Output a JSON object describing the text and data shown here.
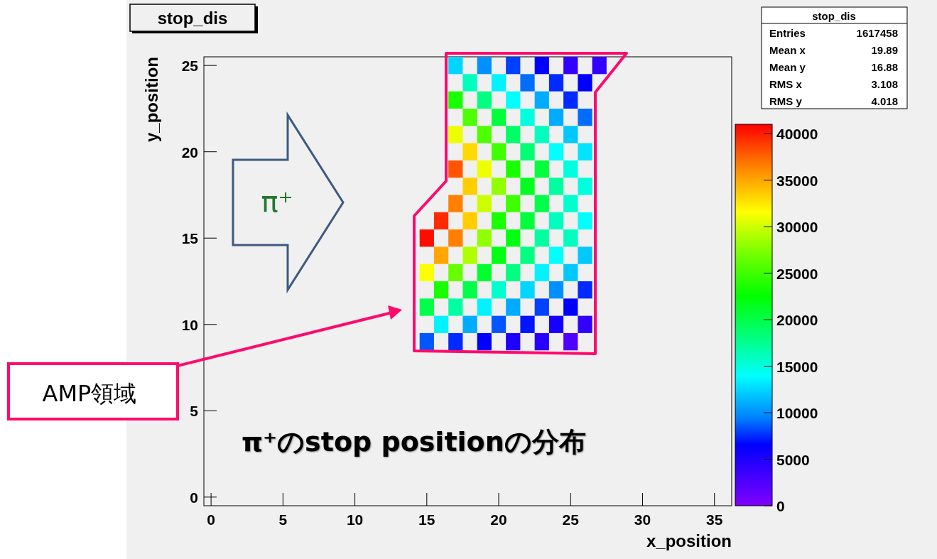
{
  "chart_data": {
    "type": "heatmap",
    "title": "stop_dis",
    "xlabel": "x_position",
    "ylabel": "y_position",
    "x": [
      15,
      16,
      17,
      18,
      19,
      20,
      21,
      22,
      23,
      24,
      25,
      26,
      27
    ],
    "y": [
      25,
      24,
      23,
      22,
      21,
      20,
      19,
      18,
      17,
      16,
      15,
      14,
      13,
      12,
      11,
      10,
      9
    ],
    "cells": [
      [
        null,
        null,
        12500,
        null,
        10000,
        null,
        8000,
        null,
        6500,
        null,
        4000,
        null,
        4000
      ],
      [
        null,
        null,
        null,
        16000,
        null,
        13500,
        null,
        9000,
        null,
        7500,
        null,
        6500,
        null
      ],
      [
        null,
        null,
        23500,
        null,
        18000,
        null,
        14000,
        null,
        11000,
        null,
        7500,
        null,
        null
      ],
      [
        null,
        null,
        null,
        25500,
        null,
        20500,
        null,
        15000,
        null,
        11000,
        null,
        9000,
        null
      ],
      [
        null,
        null,
        31000,
        null,
        25500,
        null,
        19000,
        null,
        16000,
        null,
        12000,
        null,
        null
      ],
      [
        null,
        null,
        null,
        33000,
        null,
        25000,
        null,
        18500,
        null,
        14000,
        null,
        13000,
        null
      ],
      [
        null,
        null,
        38000,
        null,
        31000,
        null,
        23500,
        null,
        20500,
        null,
        15000,
        null,
        null
      ],
      [
        null,
        null,
        null,
        33500,
        null,
        28000,
        null,
        21500,
        null,
        17000,
        null,
        15000,
        null
      ],
      [
        null,
        null,
        36500,
        null,
        30000,
        null,
        25000,
        null,
        20000,
        null,
        15500,
        null,
        null
      ],
      [
        null,
        39500,
        null,
        33500,
        null,
        23500,
        null,
        20500,
        null,
        16000,
        null,
        14000,
        null
      ],
      [
        40500,
        null,
        36500,
        null,
        28000,
        null,
        22000,
        null,
        17000,
        null,
        16000,
        null,
        null
      ],
      [
        null,
        35000,
        null,
        29000,
        null,
        22000,
        null,
        18000,
        null,
        14000,
        null,
        12000,
        null
      ],
      [
        31500,
        null,
        26500,
        null,
        21000,
        null,
        18000,
        null,
        13500,
        null,
        12000,
        null,
        null
      ],
      [
        null,
        23500,
        null,
        20000,
        null,
        15500,
        null,
        12500,
        null,
        10000,
        null,
        7500,
        null
      ],
      [
        20000,
        null,
        17000,
        null,
        13500,
        null,
        11000,
        null,
        8000,
        null,
        6500,
        null,
        null
      ],
      [
        null,
        13500,
        null,
        11000,
        null,
        8500,
        null,
        7000,
        null,
        5500,
        null,
        4000,
        null
      ],
      [
        8500,
        null,
        7500,
        null,
        6500,
        null,
        5000,
        null,
        4500,
        null,
        2500,
        null,
        null
      ]
    ],
    "xlim": [
      -0.5,
      36.2
    ],
    "xticks": [
      0,
      5,
      10,
      15,
      20,
      25,
      30,
      35
    ],
    "ylim": [
      -0.5,
      25.5
    ],
    "yticks": [
      0,
      5,
      10,
      15,
      20,
      25
    ],
    "clim": [
      0,
      41000
    ],
    "cticks": [
      0,
      5000,
      10000,
      15000,
      20000,
      25000,
      30000,
      35000,
      40000
    ],
    "annotations": [
      "stop_dis",
      "Entries",
      "1617458",
      "Mean x",
      "19.89",
      "Mean y",
      "16.88",
      "RMS x",
      "3.108",
      "RMS y",
      "4.018",
      "AMP領域",
      "π⁺のstop positionの分布",
      "π⁺"
    ]
  }
}
